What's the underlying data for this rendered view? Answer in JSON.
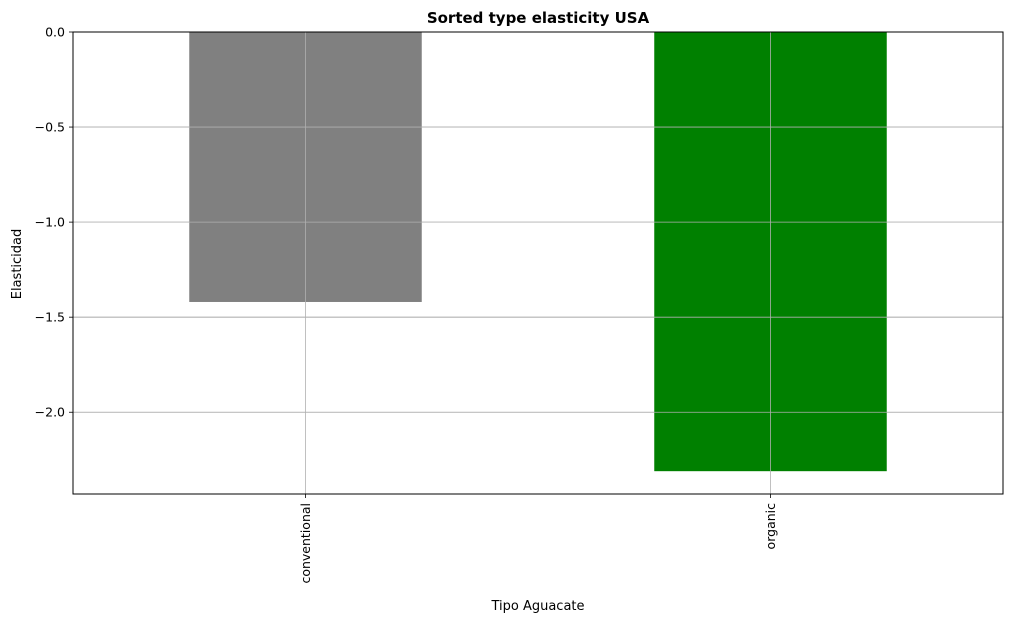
{
  "chart_data": {
    "type": "bar",
    "title": "Sorted type elasticity USA",
    "xlabel": "Tipo Aguacate",
    "ylabel": "Elasticidad",
    "categories": [
      "conventional",
      "organic"
    ],
    "values": [
      -1.42,
      -2.31
    ],
    "bar_colors": [
      "#808080",
      "#008000"
    ],
    "ylim": [
      -2.43,
      0.0
    ],
    "yticks": [
      0.0,
      -0.5,
      -1.0,
      -1.5,
      -2.0
    ],
    "ytick_labels": [
      "0.0",
      "−0.5",
      "−1.0",
      "−1.5",
      "−2.0"
    ],
    "grid": true,
    "legend": false
  }
}
